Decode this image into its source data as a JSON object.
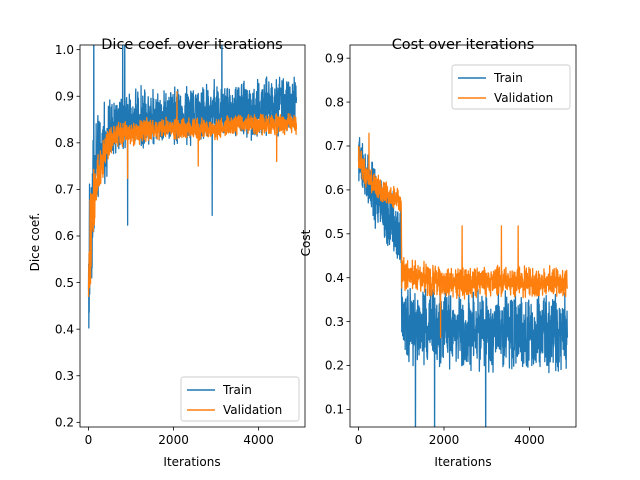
{
  "chart_data": [
    {
      "type": "line",
      "title": "Dice coef. over iterations",
      "xlabel": "Iterations",
      "ylabel": "Dice coef.",
      "xlim": [
        -200,
        5090
      ],
      "ylim": [
        0.19,
        1.01
      ],
      "xticks": [
        0,
        2000,
        4000
      ],
      "yticks": [
        0.2,
        0.3,
        0.4,
        0.5,
        0.6,
        0.7,
        0.8,
        0.9,
        1.0
      ],
      "xtick_labels": [
        "0",
        "2000",
        "4000"
      ],
      "ytick_labels": [
        "0.2",
        "0.3",
        "0.4",
        "0.5",
        "0.6",
        "0.7",
        "0.8",
        "0.9",
        "1.0"
      ],
      "legend_loc": "lower-right",
      "grid": false,
      "series": [
        {
          "name": "Train",
          "color": "#1f77b4",
          "x": [
            0,
            50,
            100,
            200,
            300,
            400,
            500,
            700,
            1000,
            1500,
            2000,
            2500,
            3000,
            3500,
            4000,
            4500,
            4890
          ],
          "y": [
            0.5,
            0.62,
            0.7,
            0.76,
            0.79,
            0.8,
            0.82,
            0.84,
            0.85,
            0.86,
            0.86,
            0.86,
            0.87,
            0.87,
            0.87,
            0.88,
            0.88
          ],
          "spread": [
            0.2,
            0.2,
            0.16,
            0.12,
            0.1,
            0.09,
            0.08,
            0.07,
            0.07,
            0.07,
            0.07,
            0.07,
            0.07,
            0.07,
            0.07,
            0.07,
            0.07
          ]
        },
        {
          "name": "Validation",
          "color": "#ff7f0e",
          "x": [
            0,
            50,
            100,
            200,
            300,
            400,
            500,
            700,
            1000,
            1500,
            2000,
            2500,
            3000,
            3500,
            4000,
            4500,
            4890
          ],
          "y": [
            0.5,
            0.6,
            0.66,
            0.72,
            0.76,
            0.78,
            0.8,
            0.82,
            0.82,
            0.83,
            0.83,
            0.83,
            0.83,
            0.84,
            0.84,
            0.84,
            0.84
          ],
          "spread": [
            0.12,
            0.12,
            0.09,
            0.07,
            0.05,
            0.04,
            0.035,
            0.03,
            0.03,
            0.03,
            0.025,
            0.025,
            0.025,
            0.025,
            0.025,
            0.025,
            0.025
          ]
        }
      ]
    },
    {
      "type": "line",
      "title": "Cost over iterations",
      "xlabel": "Iterations",
      "ylabel": "Cost",
      "xlim": [
        -200,
        5090
      ],
      "ylim": [
        0.06,
        0.93
      ],
      "xticks": [
        0,
        2000,
        4000
      ],
      "yticks": [
        0.1,
        0.2,
        0.3,
        0.4,
        0.5,
        0.6,
        0.7,
        0.8,
        0.9
      ],
      "xtick_labels": [
        "0",
        "2000",
        "4000"
      ],
      "ytick_labels": [
        "0.1",
        "0.2",
        "0.3",
        "0.4",
        "0.5",
        "0.6",
        "0.7",
        "0.8",
        "0.9"
      ],
      "legend_loc": "top-right",
      "grid": false,
      "series": [
        {
          "name": "Train",
          "color": "#1f77b4",
          "x": [
            0,
            100,
            300,
            500,
            700,
            900,
            1000,
            1010,
            1500,
            2000,
            2500,
            3000,
            3500,
            4000,
            4500,
            4890
          ],
          "y": [
            0.68,
            0.64,
            0.6,
            0.56,
            0.54,
            0.52,
            0.5,
            0.3,
            0.29,
            0.29,
            0.28,
            0.28,
            0.28,
            0.28,
            0.28,
            0.28
          ],
          "spread": [
            0.06,
            0.08,
            0.08,
            0.08,
            0.08,
            0.08,
            0.08,
            0.1,
            0.1,
            0.1,
            0.1,
            0.1,
            0.1,
            0.1,
            0.1,
            0.1
          ]
        },
        {
          "name": "Validation",
          "color": "#ff7f0e",
          "x": [
            0,
            100,
            300,
            500,
            700,
            900,
            1000,
            1010,
            1500,
            2000,
            2500,
            3000,
            3500,
            4000,
            4500,
            4890
          ],
          "y": [
            0.68,
            0.65,
            0.62,
            0.6,
            0.59,
            0.58,
            0.57,
            0.41,
            0.4,
            0.39,
            0.39,
            0.39,
            0.39,
            0.39,
            0.39,
            0.39
          ],
          "spread": [
            0.035,
            0.035,
            0.03,
            0.03,
            0.03,
            0.03,
            0.03,
            0.04,
            0.04,
            0.04,
            0.04,
            0.04,
            0.04,
            0.04,
            0.04,
            0.04
          ]
        }
      ]
    }
  ]
}
